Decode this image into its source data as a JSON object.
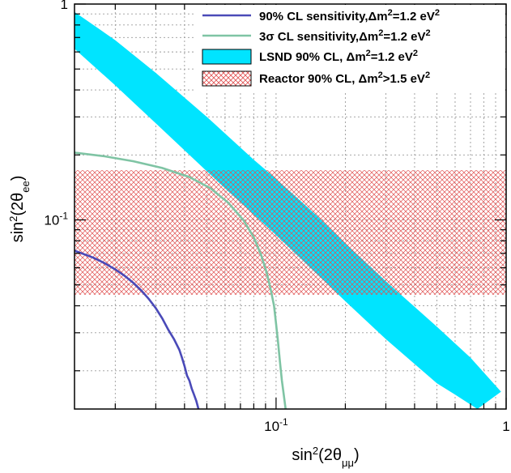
{
  "chart_data": {
    "type": "line",
    "x_scale": "log",
    "y_scale": "log",
    "xlim": [
      0.0133,
      1.0
    ],
    "ylim": [
      0.0133,
      1.0
    ],
    "grid": true,
    "xlabel": {
      "base": "sin",
      "sup": "2",
      "open": "(2θ",
      "sub": "μμ",
      "close": ")"
    },
    "ylabel": {
      "base": "sin",
      "sup": "2",
      "open": "(2θ",
      "sub": "ee",
      "close": ")"
    },
    "x_ticks": [
      {
        "value": 0.1,
        "mantissa": "10",
        "exponent": "-1"
      },
      {
        "value": 1,
        "mantissa": "1",
        "exponent": ""
      }
    ],
    "y_ticks": [
      {
        "value": 0.1,
        "mantissa": "10",
        "exponent": "-1"
      },
      {
        "value": 1,
        "mantissa": "1",
        "exponent": ""
      }
    ],
    "legend_position": "top-right",
    "series": [
      {
        "id": "sens90",
        "kind": "line",
        "color": "#4a4ab8",
        "legend": {
          "pre": "90% CL sensitivity,",
          "dm": "Δm",
          "sup": "2",
          "post": "=1.2 eV",
          "sup2": "2"
        },
        "x": [
          0.0133,
          0.016,
          0.018,
          0.02,
          0.022,
          0.024,
          0.026,
          0.028,
          0.03,
          0.032,
          0.034,
          0.036,
          0.038,
          0.039,
          0.04,
          0.041,
          0.042,
          0.043,
          0.044,
          0.045,
          0.046
        ],
        "y": [
          0.072,
          0.067,
          0.063,
          0.059,
          0.055,
          0.051,
          0.047,
          0.043,
          0.039,
          0.035,
          0.031,
          0.028,
          0.025,
          0.023,
          0.021,
          0.019,
          0.018,
          0.0165,
          0.0155,
          0.0145,
          0.0133
        ]
      },
      {
        "id": "sens3s",
        "kind": "line",
        "color": "#7fc4a4",
        "legend": {
          "pre": "3",
          "sigma": "σ",
          "mid": " CL sensitivity,",
          "dm": "Δm",
          "sup": "2",
          "post": "=1.2 eV",
          "sup2": "2"
        },
        "x": [
          0.0133,
          0.018,
          0.024,
          0.032,
          0.042,
          0.052,
          0.062,
          0.072,
          0.08,
          0.086,
          0.091,
          0.095,
          0.098,
          0.1,
          0.102,
          0.104,
          0.106,
          0.108,
          0.11
        ],
        "y": [
          0.205,
          0.197,
          0.187,
          0.174,
          0.158,
          0.14,
          0.12,
          0.1,
          0.083,
          0.069,
          0.057,
          0.047,
          0.04,
          0.033,
          0.027,
          0.022,
          0.018,
          0.0155,
          0.0133
        ]
      },
      {
        "id": "lsnd",
        "kind": "band",
        "color": "#00e4ff",
        "legend": {
          "pre": "LSND 90% CL, ",
          "dm": "Δm",
          "sup": "2",
          "post": "=1.2 eV",
          "sup2": "2"
        },
        "upper_x": [
          0.0133,
          0.02,
          0.03,
          0.05,
          0.08,
          0.1,
          0.15,
          0.2,
          0.3,
          0.5,
          0.7,
          0.95
        ],
        "upper_y": [
          0.92,
          0.68,
          0.48,
          0.3,
          0.19,
          0.155,
          0.105,
          0.078,
          0.052,
          0.032,
          0.023,
          0.016
        ],
        "lower_x": [
          0.75,
          0.6,
          0.5,
          0.3,
          0.2,
          0.1,
          0.06,
          0.04,
          0.03,
          0.02,
          0.0133
        ],
        "lower_y": [
          0.0133,
          0.0155,
          0.0175,
          0.028,
          0.042,
          0.085,
          0.14,
          0.21,
          0.28,
          0.42,
          0.62
        ]
      },
      {
        "id": "reactor",
        "kind": "hband",
        "color": "#e05050",
        "legend": {
          "pre": "Reactor 90% CL, ",
          "dm": "Δm",
          "sup": "2",
          "post": ">1.5 eV",
          "sup2": "2"
        },
        "y_range": [
          0.045,
          0.17
        ]
      }
    ]
  }
}
